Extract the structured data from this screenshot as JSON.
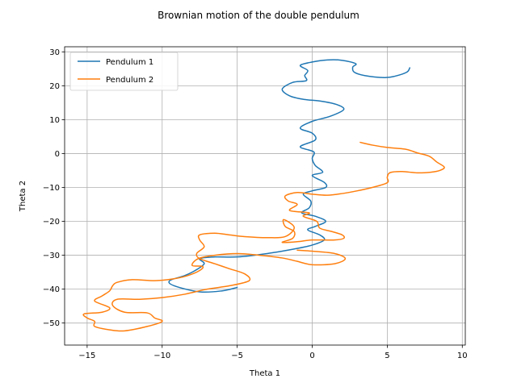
{
  "chart_data": {
    "type": "line",
    "title": "Brownian motion of the double pendulum",
    "xlabel": "Theta 1",
    "ylabel": "Theta 2",
    "xlim": [
      -16.5,
      10.2
    ],
    "ylim": [
      -56.5,
      31.5
    ],
    "xticks": [
      -15,
      -10,
      -5,
      0,
      5,
      10
    ],
    "yticks": [
      -50,
      -40,
      -30,
      -20,
      -10,
      0,
      10,
      20,
      30
    ],
    "grid": true,
    "legend": "top-left",
    "series": [
      {
        "name": "Pendulum 1",
        "color": "#1f77b4",
        "points": [
          [
            6.5,
            25.3
          ],
          [
            6.3,
            24.0
          ],
          [
            5.5,
            22.8
          ],
          [
            4.8,
            22.4
          ],
          [
            3.5,
            23.0
          ],
          [
            2.8,
            24.0
          ],
          [
            2.7,
            25.5
          ],
          [
            2.9,
            26.5
          ],
          [
            2.0,
            27.5
          ],
          [
            1.0,
            27.6
          ],
          [
            0.0,
            27.0
          ],
          [
            -0.8,
            26.0
          ],
          [
            -0.3,
            24.5
          ],
          [
            -0.5,
            23.0
          ],
          [
            -0.4,
            21.5
          ],
          [
            -1.3,
            21.0
          ],
          [
            -2.0,
            19.0
          ],
          [
            -1.5,
            17.0
          ],
          [
            -0.6,
            16.0
          ],
          [
            0.5,
            15.5
          ],
          [
            1.6,
            14.5
          ],
          [
            2.1,
            13.0
          ],
          [
            1.2,
            11.0
          ],
          [
            0.0,
            9.5
          ],
          [
            -0.8,
            7.5
          ],
          [
            0.0,
            6.0
          ],
          [
            0.2,
            4.0
          ],
          [
            -0.8,
            2.0
          ],
          [
            0.1,
            0.5
          ],
          [
            0.0,
            -1.5
          ],
          [
            0.2,
            -3.5
          ],
          [
            0.7,
            -5.5
          ],
          [
            0.0,
            -6.5
          ],
          [
            0.8,
            -8.5
          ],
          [
            0.9,
            -10.0
          ],
          [
            0.0,
            -11.0
          ],
          [
            -0.6,
            -12.0
          ],
          [
            -0.1,
            -14.0
          ],
          [
            -0.2,
            -16.0
          ],
          [
            -0.7,
            -17.5
          ],
          [
            0.2,
            -18.5
          ],
          [
            0.9,
            -20.0
          ],
          [
            0.2,
            -21.5
          ],
          [
            -0.3,
            -22.5
          ],
          [
            0.5,
            -24.0
          ],
          [
            0.8,
            -25.5
          ],
          [
            0.0,
            -27.0
          ],
          [
            -1.0,
            -28.0
          ],
          [
            -3.0,
            -29.5
          ],
          [
            -5.0,
            -30.5
          ],
          [
            -6.5,
            -30.5
          ],
          [
            -7.5,
            -31.0
          ],
          [
            -7.2,
            -32.5
          ],
          [
            -7.8,
            -34.5
          ],
          [
            -8.5,
            -36.0
          ],
          [
            -9.5,
            -37.5
          ],
          [
            -9.2,
            -39.0
          ],
          [
            -7.5,
            -40.8
          ],
          [
            -6.0,
            -40.5
          ],
          [
            -5.0,
            -39.5
          ]
        ]
      },
      {
        "name": "Pendulum 2",
        "color": "#ff7f0e",
        "points": [
          [
            3.2,
            3.3
          ],
          [
            4.0,
            2.5
          ],
          [
            5.0,
            1.8
          ],
          [
            6.2,
            1.3
          ],
          [
            7.0,
            0.2
          ],
          [
            7.8,
            -0.8
          ],
          [
            8.3,
            -2.5
          ],
          [
            8.8,
            -4.0
          ],
          [
            8.5,
            -5.0
          ],
          [
            7.9,
            -5.5
          ],
          [
            7.0,
            -5.7
          ],
          [
            6.0,
            -5.3
          ],
          [
            5.2,
            -5.6
          ],
          [
            5.0,
            -7.0
          ],
          [
            5.0,
            -8.6
          ],
          [
            4.0,
            -10.0
          ],
          [
            3.0,
            -11.0
          ],
          [
            2.0,
            -11.8
          ],
          [
            1.0,
            -12.3
          ],
          [
            0.0,
            -12.0
          ],
          [
            -1.0,
            -11.5
          ],
          [
            -1.8,
            -12.5
          ],
          [
            -1.6,
            -14.0
          ],
          [
            -1.0,
            -15.0
          ],
          [
            -1.5,
            -16.8
          ],
          [
            -0.2,
            -17.5
          ],
          [
            -0.6,
            -18.5
          ],
          [
            0.3,
            -20.0
          ],
          [
            0.5,
            -22.0
          ],
          [
            1.3,
            -23.0
          ],
          [
            2.0,
            -24.0
          ],
          [
            2.1,
            -25.0
          ],
          [
            1.5,
            -25.5
          ],
          [
            0.0,
            -25.5
          ],
          [
            -1.0,
            -26.0
          ],
          [
            -2.0,
            -26.2
          ],
          [
            -1.3,
            -25.0
          ],
          [
            -1.2,
            -23.0
          ],
          [
            -1.8,
            -21.5
          ],
          [
            -1.9,
            -19.5
          ],
          [
            -1.2,
            -21.8
          ],
          [
            -1.8,
            -24.5
          ],
          [
            -3.0,
            -24.8
          ],
          [
            -4.5,
            -24.5
          ],
          [
            -5.5,
            -24.0
          ],
          [
            -6.5,
            -23.5
          ],
          [
            -7.5,
            -24.0
          ],
          [
            -7.5,
            -25.5
          ],
          [
            -7.2,
            -27.5
          ],
          [
            -7.7,
            -29.5
          ],
          [
            -7.5,
            -31.0
          ],
          [
            -6.5,
            -32.5
          ],
          [
            -5.5,
            -34.0
          ],
          [
            -4.5,
            -35.5
          ],
          [
            -4.2,
            -37.5
          ],
          [
            -5.5,
            -39.0
          ],
          [
            -7.0,
            -40.0
          ],
          [
            -8.5,
            -41.5
          ],
          [
            -10.0,
            -42.5
          ],
          [
            -11.5,
            -43.0
          ],
          [
            -13.0,
            -43.0
          ],
          [
            -13.3,
            -44.8
          ],
          [
            -12.5,
            -46.8
          ],
          [
            -11.0,
            -47.0
          ],
          [
            -10.5,
            -48.5
          ],
          [
            -10.0,
            -49.5
          ],
          [
            -11.0,
            -51.0
          ],
          [
            -12.5,
            -52.3
          ],
          [
            -13.5,
            -52.0
          ],
          [
            -14.5,
            -51.0
          ],
          [
            -14.5,
            -49.5
          ],
          [
            -15.0,
            -48.5
          ],
          [
            -15.2,
            -47.3
          ],
          [
            -14.0,
            -46.8
          ],
          [
            -13.5,
            -45.5
          ],
          [
            -14.5,
            -43.5
          ],
          [
            -14.0,
            -42.0
          ],
          [
            -13.5,
            -40.5
          ],
          [
            -13.3,
            -39.0
          ],
          [
            -13.0,
            -38.0
          ],
          [
            -12.0,
            -37.2
          ],
          [
            -10.5,
            -37.5
          ],
          [
            -9.3,
            -37.0
          ],
          [
            -8.3,
            -36.0
          ],
          [
            -7.5,
            -34.5
          ],
          [
            -7.3,
            -33.3
          ],
          [
            -8.0,
            -33.0
          ],
          [
            -7.6,
            -31.0
          ],
          [
            -6.5,
            -30.0
          ],
          [
            -5.0,
            -29.5
          ],
          [
            -3.5,
            -30.0
          ],
          [
            -2.0,
            -30.8
          ],
          [
            -1.0,
            -31.8
          ],
          [
            0.0,
            -32.8
          ],
          [
            1.5,
            -32.5
          ],
          [
            2.2,
            -31.0
          ],
          [
            1.5,
            -29.5
          ],
          [
            0.0,
            -28.8
          ],
          [
            -1.0,
            -28.5
          ]
        ]
      }
    ]
  }
}
